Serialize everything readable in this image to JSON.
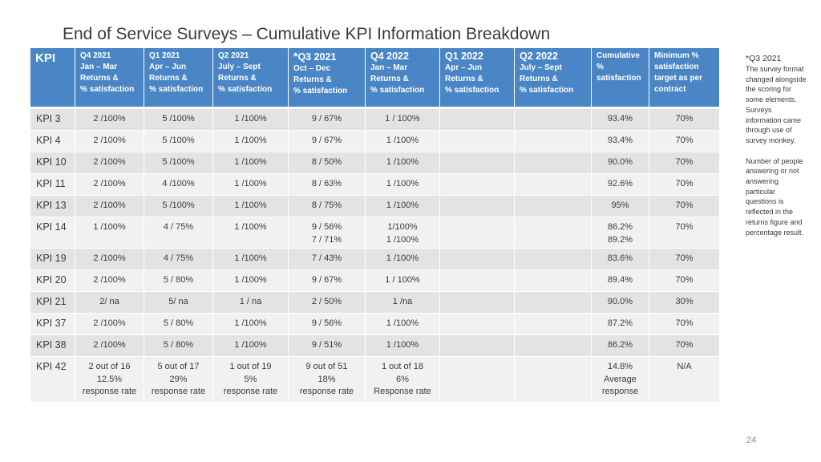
{
  "title": "End of Service Surveys – Cumulative KPI Information Breakdown",
  "table": {
    "kpi_header": "KPI",
    "headers": [
      {
        "lines": [
          "Q4 2021",
          "Jan – Mar",
          "Returns &",
          "% satisfaction"
        ]
      },
      {
        "lines": [
          "Q1 2021",
          "Apr – Jun",
          "Returns &",
          "% satisfaction"
        ]
      },
      {
        "lines": [
          "Q2 2021",
          "July – Sept",
          "Returns &",
          "% satisfaction"
        ]
      },
      {
        "star": "*",
        "lines": [
          "Q3 2021",
          "Oct – Dec",
          "Returns &",
          "% satisfaction"
        ]
      },
      {
        "lines": [
          "Q4 2022",
          "Jan – Mar",
          "Returns &",
          " % satisfaction"
        ]
      },
      {
        "lines": [
          "Q1  2022",
          "Apr – Jun",
          "Returns &",
          "% satisfaction"
        ]
      },
      {
        "lines": [
          "Q2 2022",
          "July – Sept",
          "Returns &",
          "% satisfaction"
        ]
      },
      {
        "lines": [
          "Cumulative",
          "%",
          "satisfaction",
          ""
        ]
      },
      {
        "lines": [
          "Minimum %",
          "satisfaction",
          "target as per",
          "contract"
        ]
      }
    ],
    "rows": [
      {
        "kpi": "KPI 3",
        "cells": [
          [
            "2 /100%"
          ],
          [
            "5 /100%"
          ],
          [
            "1 /100%"
          ],
          [
            "9 / 67%"
          ],
          [
            "1 / 100%"
          ],
          [
            ""
          ],
          [
            ""
          ],
          [
            "93.4%"
          ],
          [
            "70%"
          ]
        ]
      },
      {
        "kpi": "KPI 4",
        "cells": [
          [
            "2 /100%"
          ],
          [
            "5 /100%"
          ],
          [
            "1 /100%"
          ],
          [
            "9 / 67%"
          ],
          [
            "1 /100%"
          ],
          [
            ""
          ],
          [
            ""
          ],
          [
            "93.4%"
          ],
          [
            "70%"
          ]
        ]
      },
      {
        "kpi": "KPI 10",
        "cells": [
          [
            "2 /100%"
          ],
          [
            "5 /100%"
          ],
          [
            "1 /100%"
          ],
          [
            "8 / 50%"
          ],
          [
            "1 /100%"
          ],
          [
            ""
          ],
          [
            ""
          ],
          [
            "90.0%"
          ],
          [
            "70%"
          ]
        ]
      },
      {
        "kpi": "KPI 11",
        "cells": [
          [
            "2 /100%"
          ],
          [
            "4 /100%"
          ],
          [
            "1 /100%"
          ],
          [
            "8 / 63%"
          ],
          [
            "1 /100%"
          ],
          [
            ""
          ],
          [
            ""
          ],
          [
            "92.6%"
          ],
          [
            "70%"
          ]
        ]
      },
      {
        "kpi": "KPI 13",
        "cells": [
          [
            "2 /100%"
          ],
          [
            "5 /100%"
          ],
          [
            "1 /100%"
          ],
          [
            "8 / 75%"
          ],
          [
            "1 /100%"
          ],
          [
            ""
          ],
          [
            ""
          ],
          [
            "95%"
          ],
          [
            "70%"
          ]
        ]
      },
      {
        "kpi": "KPI 14",
        "cells": [
          [
            "1 /100%"
          ],
          [
            "4 / 75%"
          ],
          [
            "1 /100%"
          ],
          [
            "9 / 56%",
            "7 / 71%"
          ],
          [
            "1/100%",
            "1 /100%"
          ],
          [
            ""
          ],
          [
            ""
          ],
          [
            "86.2%",
            "89.2%"
          ],
          [
            "70%"
          ]
        ]
      },
      {
        "kpi": "KPI 19",
        "cells": [
          [
            "2 /100%"
          ],
          [
            "4 / 75%"
          ],
          [
            "1 /100%"
          ],
          [
            "7 / 43%"
          ],
          [
            "1 /100%"
          ],
          [
            ""
          ],
          [
            ""
          ],
          [
            "83.6%"
          ],
          [
            "70%"
          ]
        ]
      },
      {
        "kpi": "KPI 20",
        "cells": [
          [
            "2 /100%"
          ],
          [
            "5 / 80%"
          ],
          [
            "1 /100%"
          ],
          [
            "9 / 67%"
          ],
          [
            "1 / 100%"
          ],
          [
            ""
          ],
          [
            ""
          ],
          [
            "89.4%"
          ],
          [
            "70%"
          ]
        ]
      },
      {
        "kpi": "KPI 21",
        "cells": [
          [
            "2/ na"
          ],
          [
            "5/ na"
          ],
          [
            "1 / na"
          ],
          [
            "2 / 50%"
          ],
          [
            "1 /na"
          ],
          [
            ""
          ],
          [
            ""
          ],
          [
            "90.0%"
          ],
          [
            "30%"
          ]
        ]
      },
      {
        "kpi": "KPI 37",
        "cells": [
          [
            "2 /100%"
          ],
          [
            "5 / 80%"
          ],
          [
            "1 /100%"
          ],
          [
            "9 / 56%"
          ],
          [
            "1 /100%"
          ],
          [
            ""
          ],
          [
            ""
          ],
          [
            "87.2%"
          ],
          [
            "70%"
          ]
        ]
      },
      {
        "kpi": "KPI 38",
        "cells": [
          [
            "2 /100%"
          ],
          [
            "5 / 80%"
          ],
          [
            "1 /100%"
          ],
          [
            "9 / 51%"
          ],
          [
            "1 /100%"
          ],
          [
            ""
          ],
          [
            ""
          ],
          [
            "86.2%"
          ],
          [
            "70%"
          ]
        ]
      },
      {
        "kpi": "KPI 42",
        "cells": [
          [
            "2 out of 16",
            "12.5%",
            "response rate"
          ],
          [
            "5 out of 17",
            "29%",
            "response rate"
          ],
          [
            "1 out of 19",
            "5%",
            "response rate"
          ],
          [
            "9 out of 51",
            "18%",
            "response rate"
          ],
          [
            "1 out of 18",
            "6%",
            "Response rate"
          ],
          [
            ""
          ],
          [
            ""
          ],
          [
            "14.8%",
            "Average",
            "response"
          ],
          [
            "N/A"
          ]
        ]
      }
    ]
  },
  "note": {
    "title": "*Q3 2021",
    "para1": "The survey format changed alongside the scoring for some elements. Surveys information came  through use of survey monkey.",
    "para2": "Number of people answering or not answering particular questions is reflected in the returns figure and percentage result."
  },
  "page_number": "24"
}
